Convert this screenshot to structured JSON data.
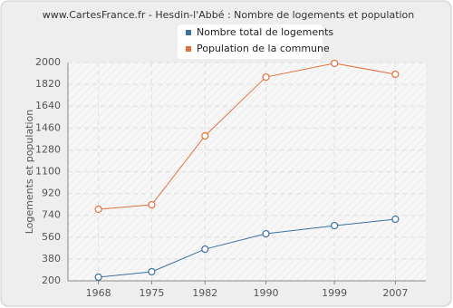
{
  "chart_data": {
    "type": "line",
    "title": "www.CartesFrance.fr - Hesdin-l'Abbé : Nombre de logements et population",
    "y_label": "Logements et population",
    "x": [
      1968,
      1975,
      1982,
      1990,
      1999,
      2007
    ],
    "series": [
      {
        "name": "Nombre total de logements",
        "color": "#3d6fa3",
        "values": [
          230,
          275,
          461,
          588,
          655,
          708
        ]
      },
      {
        "name": "Population de la commune",
        "color": "#e2703c",
        "values": [
          790,
          827,
          1395,
          1880,
          1993,
          1903
        ]
      }
    ],
    "xlim": [
      1964,
      2011
    ],
    "xticks": [
      1968,
      1975,
      1982,
      1990,
      1999,
      2007
    ],
    "ylim": [
      200,
      2000
    ],
    "yticks": [
      200,
      380,
      560,
      740,
      920,
      1100,
      1280,
      1460,
      1640,
      1820,
      2000
    ],
    "grid": true
  }
}
